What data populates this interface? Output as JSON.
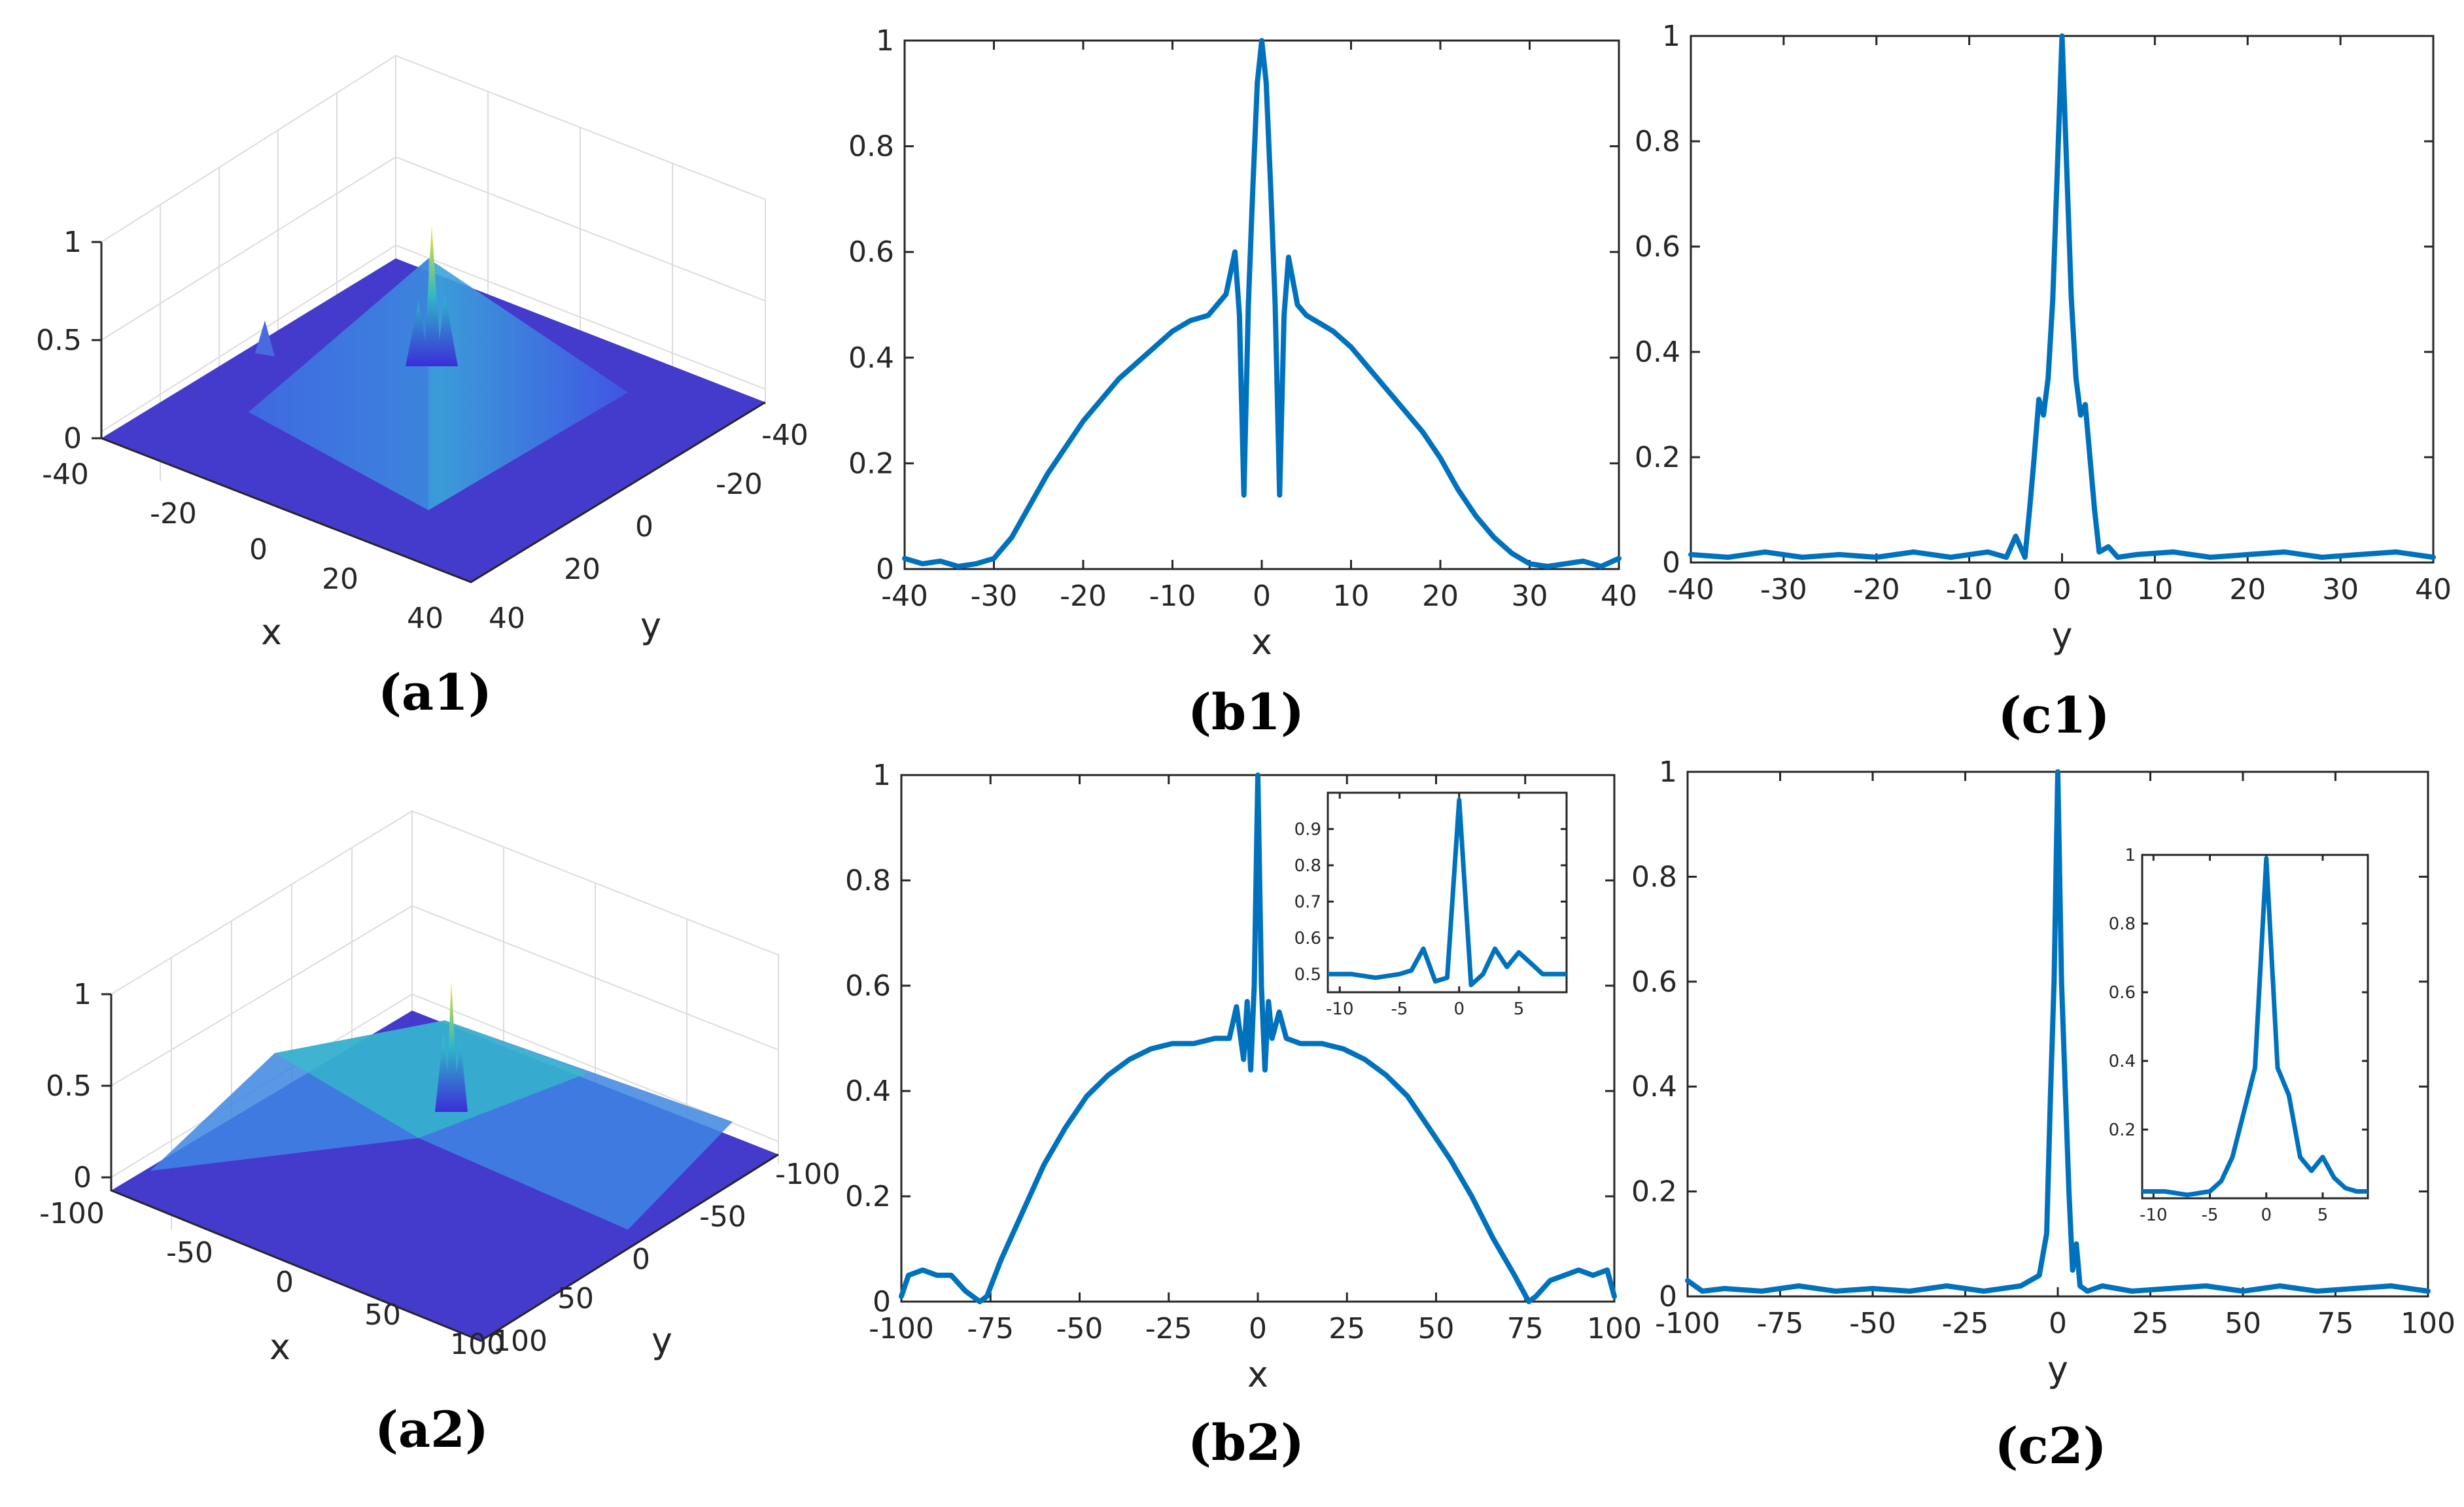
{
  "figure": {
    "panels": {
      "a1": "(a1)",
      "b1": "(b1)",
      "c1": "(c1)",
      "a2": "(a2)",
      "b2": "(b2)",
      "c2": "(c2)"
    }
  },
  "colors": {
    "line": "#0072BD",
    "surface_low": "#3B2ED8",
    "surface_mid": "#2FB7C8",
    "surface_high": "#F5E51B"
  },
  "chart_data": [
    {
      "id": "a1",
      "type": "surface",
      "title": "",
      "xlabel": "x",
      "ylabel": "y",
      "xticks": [
        "-40",
        "-20",
        "0",
        "20",
        "40"
      ],
      "yticks": [
        "-40",
        "-20",
        "0",
        "20",
        "40"
      ],
      "zticks": [
        "0",
        "0.5",
        "1"
      ],
      "xlim": [
        -40,
        40
      ],
      "ylim": [
        -40,
        40
      ],
      "zlim": [
        0,
        1
      ]
    },
    {
      "id": "b1",
      "type": "line",
      "xlabel": "x",
      "ylabel": "",
      "xlim": [
        -40,
        40
      ],
      "ylim": [
        0,
        1
      ],
      "xticks": [
        "-40",
        "-30",
        "-20",
        "-10",
        "0",
        "10",
        "20",
        "30",
        "40"
      ],
      "yticks": [
        "0",
        "0.2",
        "0.4",
        "0.6",
        "0.8",
        "1"
      ],
      "series": [
        {
          "name": "b1",
          "x": [
            -40,
            -38,
            -36,
            -34,
            -32,
            -30,
            -28,
            -26,
            -24,
            -22,
            -20,
            -18,
            -16,
            -14,
            -12,
            -10,
            -8,
            -6,
            -5,
            -4,
            -3,
            -2.5,
            -2,
            -1.5,
            -1,
            -0.5,
            0,
            0.5,
            1,
            1.5,
            2,
            2.5,
            3,
            4,
            5,
            6,
            8,
            10,
            12,
            14,
            16,
            18,
            20,
            22,
            24,
            26,
            28,
            30,
            32,
            34,
            36,
            38,
            40
          ],
          "y": [
            0.02,
            0.01,
            0.015,
            0.005,
            0.01,
            0.02,
            0.06,
            0.12,
            0.18,
            0.23,
            0.28,
            0.32,
            0.36,
            0.39,
            0.42,
            0.45,
            0.47,
            0.48,
            0.5,
            0.52,
            0.6,
            0.48,
            0.14,
            0.5,
            0.72,
            0.92,
            1.0,
            0.92,
            0.72,
            0.5,
            0.14,
            0.48,
            0.59,
            0.5,
            0.48,
            0.47,
            0.45,
            0.42,
            0.38,
            0.34,
            0.3,
            0.26,
            0.21,
            0.15,
            0.1,
            0.06,
            0.03,
            0.01,
            0.005,
            0.01,
            0.015,
            0.005,
            0.02
          ]
        }
      ]
    },
    {
      "id": "c1",
      "type": "line",
      "xlabel": "y",
      "ylabel": "",
      "xlim": [
        -40,
        40
      ],
      "ylim": [
        0,
        1
      ],
      "xticks": [
        "-40",
        "-30",
        "-20",
        "-10",
        "0",
        "10",
        "20",
        "30",
        "40"
      ],
      "yticks": [
        "0",
        "0.2",
        "0.4",
        "0.6",
        "0.8",
        "1"
      ],
      "series": [
        {
          "name": "c1",
          "x": [
            -40,
            -36,
            -32,
            -28,
            -24,
            -20,
            -16,
            -12,
            -8,
            -6,
            -5,
            -4,
            -3.5,
            -3,
            -2.5,
            -2,
            -1.5,
            -1,
            -0.5,
            0,
            0.5,
            1,
            1.5,
            2,
            2.5,
            3,
            3.5,
            4,
            5,
            6,
            8,
            12,
            16,
            20,
            24,
            28,
            32,
            36,
            40
          ],
          "y": [
            0.015,
            0.01,
            0.02,
            0.01,
            0.015,
            0.01,
            0.02,
            0.01,
            0.02,
            0.01,
            0.05,
            0.01,
            0.1,
            0.2,
            0.31,
            0.28,
            0.35,
            0.5,
            0.75,
            1.0,
            0.75,
            0.5,
            0.35,
            0.28,
            0.3,
            0.2,
            0.1,
            0.02,
            0.03,
            0.01,
            0.015,
            0.02,
            0.01,
            0.015,
            0.02,
            0.01,
            0.015,
            0.02,
            0.01
          ]
        }
      ]
    },
    {
      "id": "a2",
      "type": "surface",
      "title": "",
      "xlabel": "x",
      "ylabel": "y",
      "xticks": [
        "-100",
        "-50",
        "0",
        "50",
        "100"
      ],
      "yticks": [
        "-100",
        "-50",
        "0",
        "50",
        "100"
      ],
      "zticks": [
        "0",
        "0.5",
        "1"
      ],
      "xlim": [
        -100,
        100
      ],
      "ylim": [
        -100,
        100
      ],
      "zlim": [
        0,
        1
      ]
    },
    {
      "id": "b2",
      "type": "line",
      "xlabel": "x",
      "ylabel": "",
      "xlim": [
        -100,
        100
      ],
      "ylim": [
        0,
        1
      ],
      "xticks": [
        "-100",
        "-75",
        "-50",
        "-25",
        "0",
        "25",
        "50",
        "75",
        "100"
      ],
      "yticks": [
        "0",
        "0.2",
        "0.4",
        "0.6",
        "0.8",
        "1"
      ],
      "series": [
        {
          "name": "b2",
          "x": [
            -100,
            -98,
            -94,
            -90,
            -86,
            -82,
            -78,
            -76,
            -72,
            -66,
            -60,
            -54,
            -48,
            -42,
            -36,
            -30,
            -24,
            -18,
            -12,
            -8,
            -6,
            -4,
            -3,
            -2,
            -1,
            0,
            1,
            2,
            3,
            4,
            6,
            8,
            12,
            18,
            24,
            30,
            36,
            42,
            48,
            54,
            60,
            66,
            72,
            76,
            78,
            82,
            86,
            90,
            94,
            98,
            100
          ],
          "y": [
            0.01,
            0.05,
            0.06,
            0.05,
            0.05,
            0.02,
            0.0,
            0.01,
            0.08,
            0.17,
            0.26,
            0.33,
            0.39,
            0.43,
            0.46,
            0.48,
            0.49,
            0.49,
            0.5,
            0.5,
            0.56,
            0.46,
            0.57,
            0.44,
            0.6,
            1.0,
            0.6,
            0.44,
            0.57,
            0.5,
            0.55,
            0.5,
            0.49,
            0.49,
            0.48,
            0.46,
            0.43,
            0.39,
            0.33,
            0.27,
            0.2,
            0.12,
            0.05,
            0.0,
            0.01,
            0.04,
            0.05,
            0.06,
            0.05,
            0.06,
            0.01
          ]
        }
      ],
      "inset": {
        "xlim": [
          -11,
          9
        ],
        "ylim": [
          0.45,
          1.0
        ],
        "xticks": [
          "-10",
          "-5",
          "0",
          "5"
        ],
        "yticks": [
          "0.5",
          "0.6",
          "0.7",
          "0.8",
          "0.9"
        ],
        "x": [
          -11,
          -9,
          -7,
          -5,
          -4,
          -3,
          -2,
          -1,
          0,
          1,
          2,
          3,
          4,
          5,
          6,
          7,
          8,
          9
        ],
        "y": [
          0.5,
          0.5,
          0.49,
          0.5,
          0.51,
          0.57,
          0.48,
          0.49,
          0.98,
          0.47,
          0.5,
          0.57,
          0.52,
          0.56,
          0.53,
          0.5,
          0.5,
          0.5
        ]
      }
    },
    {
      "id": "c2",
      "type": "line",
      "xlabel": "y",
      "ylabel": "",
      "xlim": [
        -100,
        100
      ],
      "ylim": [
        0,
        1
      ],
      "xticks": [
        "-100",
        "-75",
        "-50",
        "-25",
        "0",
        "25",
        "50",
        "75",
        "100"
      ],
      "yticks": [
        "0",
        "0.2",
        "0.4",
        "0.6",
        "0.8",
        "1"
      ],
      "series": [
        {
          "name": "c2",
          "x": [
            -100,
            -96,
            -90,
            -80,
            -70,
            -60,
            -50,
            -40,
            -30,
            -20,
            -10,
            -5,
            -3,
            -2,
            -1,
            0,
            1,
            2,
            3,
            4,
            5,
            6,
            8,
            12,
            20,
            30,
            40,
            50,
            60,
            70,
            80,
            90,
            100
          ],
          "y": [
            0.03,
            0.01,
            0.015,
            0.01,
            0.02,
            0.01,
            0.015,
            0.01,
            0.02,
            0.01,
            0.02,
            0.04,
            0.12,
            0.38,
            0.6,
            1.0,
            0.6,
            0.4,
            0.2,
            0.05,
            0.1,
            0.02,
            0.01,
            0.02,
            0.01,
            0.015,
            0.02,
            0.01,
            0.02,
            0.01,
            0.015,
            0.02,
            0.01
          ]
        }
      ],
      "inset": {
        "xlim": [
          -11,
          9
        ],
        "ylim": [
          0,
          1.0
        ],
        "xticks": [
          "-10",
          "-5",
          "0",
          "5"
        ],
        "yticks": [
          "0.2",
          "0.4",
          "0.6",
          "0.8",
          "1"
        ],
        "x": [
          -11,
          -9,
          -7,
          -5,
          -4,
          -3,
          -2,
          -1,
          0,
          1,
          2,
          3,
          4,
          5,
          6,
          7,
          8,
          9
        ],
        "y": [
          0.02,
          0.02,
          0.01,
          0.02,
          0.05,
          0.12,
          0.25,
          0.38,
          0.99,
          0.38,
          0.3,
          0.12,
          0.08,
          0.12,
          0.06,
          0.03,
          0.02,
          0.02
        ]
      }
    }
  ]
}
